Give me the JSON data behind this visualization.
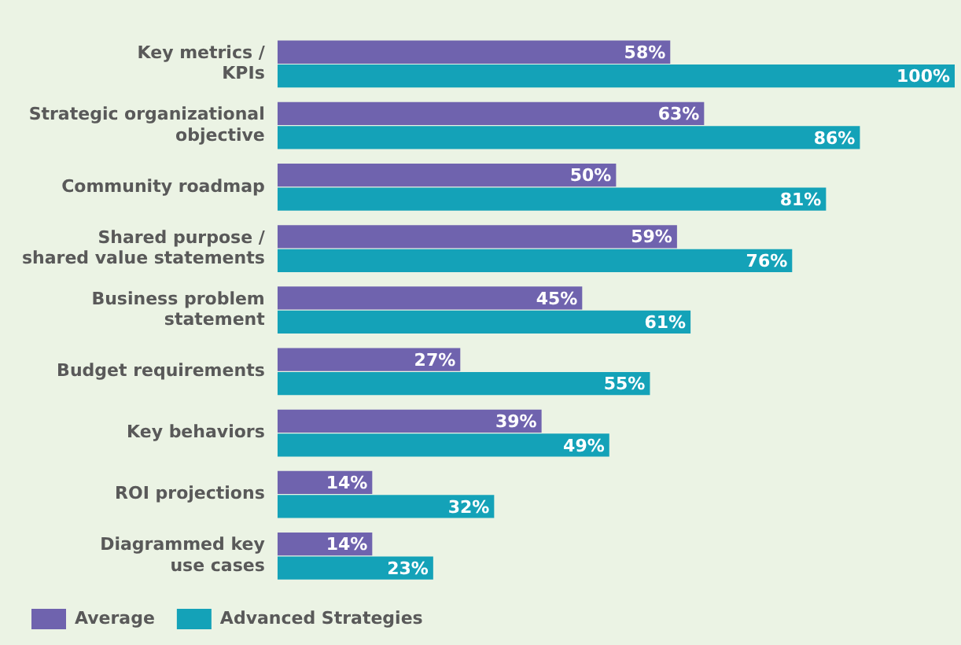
{
  "chart_data": {
    "type": "bar",
    "orientation": "horizontal",
    "categories": [
      "Key metrics /\nKPIs",
      "Strategic organizational\nobjective",
      "Community roadmap",
      "Shared purpose /\nshared value statements",
      "Business problem\nstatement",
      "Budget requirements",
      "Key behaviors",
      "ROI projections",
      "Diagrammed key\nuse cases"
    ],
    "series": [
      {
        "name": "Average",
        "color": "#6f63ae",
        "values": [
          58,
          63,
          50,
          59,
          45,
          27,
          39,
          14,
          14
        ],
        "value_labels": [
          "58%",
          "63%",
          "50%",
          "59%",
          "45%",
          "27%",
          "39%",
          "14%",
          "14%"
        ]
      },
      {
        "name": "Advanced Strategies",
        "color": "#14a2b8",
        "values": [
          100,
          86,
          81,
          76,
          61,
          55,
          49,
          32,
          23
        ],
        "value_labels": [
          "100%",
          "86%",
          "81%",
          "76%",
          "61%",
          "55%",
          "49%",
          "32%",
          "23%"
        ]
      }
    ],
    "legend": "bottom",
    "grid": false
  }
}
